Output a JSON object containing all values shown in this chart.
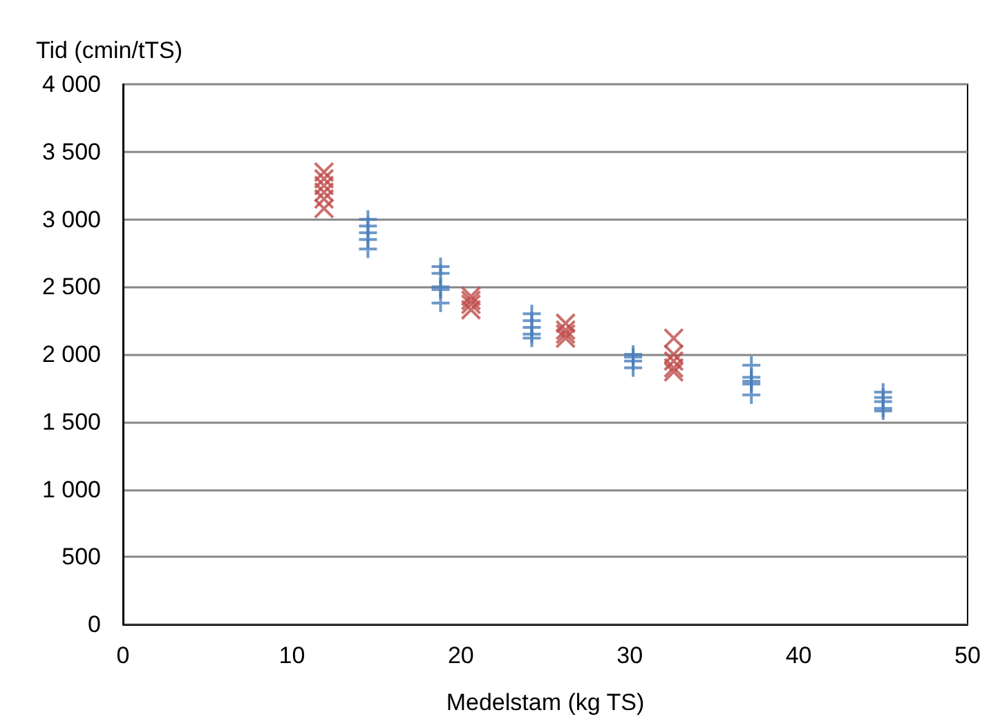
{
  "chart_data": {
    "type": "scatter",
    "xlabel": "Medelstam (kg TS)",
    "ylabel": "Tid (cmin/tTS)",
    "xlim": [
      0,
      50
    ],
    "xticks": [
      0,
      10,
      20,
      30,
      40,
      50
    ],
    "ylim": [
      0,
      4000
    ],
    "yticks": [
      0,
      500,
      {
        "value": 1000,
        "label": "1 000"
      },
      {
        "value": 1500,
        "label": "1 500"
      },
      {
        "value": 2000,
        "label": "2 000"
      },
      {
        "value": 2500,
        "label": "2 500"
      },
      {
        "value": 3000,
        "label": "3 000"
      },
      {
        "value": 3500,
        "label": "3 500"
      },
      {
        "value": 4000,
        "label": "4 000"
      }
    ],
    "grid": "y",
    "series": [
      {
        "color": "#4a7ebb",
        "marker": "plus",
        "x": [
          14.5,
          14.5,
          14.5,
          14.5,
          14.5,
          18.8,
          18.8,
          18.8,
          18.8,
          18.8,
          24.2,
          24.2,
          24.2,
          24.2,
          24.2,
          30.2,
          30.2,
          30.2,
          30.2,
          37.2,
          37.2,
          37.2,
          37.2,
          37.2,
          45,
          45,
          45,
          45,
          45
        ],
        "values": [
          3000,
          2950,
          2900,
          2850,
          2780,
          2650,
          2600,
          2500,
          2480,
          2380,
          2300,
          2250,
          2200,
          2150,
          2120,
          2000,
          1980,
          1950,
          1900,
          1920,
          1830,
          1800,
          1780,
          1700,
          1720,
          1680,
          1650,
          1600,
          1580
        ]
      },
      {
        "color": "#be4b48",
        "marker": "cross",
        "x": [
          11.9,
          11.9,
          11.9,
          11.9,
          11.9,
          11.9,
          20.6,
          20.6,
          20.6,
          20.6,
          26.2,
          26.2,
          26.2,
          26.2,
          32.6,
          32.6,
          32.6,
          32.6,
          32.6
        ],
        "values": [
          3350,
          3300,
          3250,
          3200,
          3150,
          3080,
          2430,
          2400,
          2370,
          2330,
          2230,
          2180,
          2150,
          2120,
          2120,
          2000,
          1950,
          1900,
          1870
        ]
      }
    ]
  }
}
